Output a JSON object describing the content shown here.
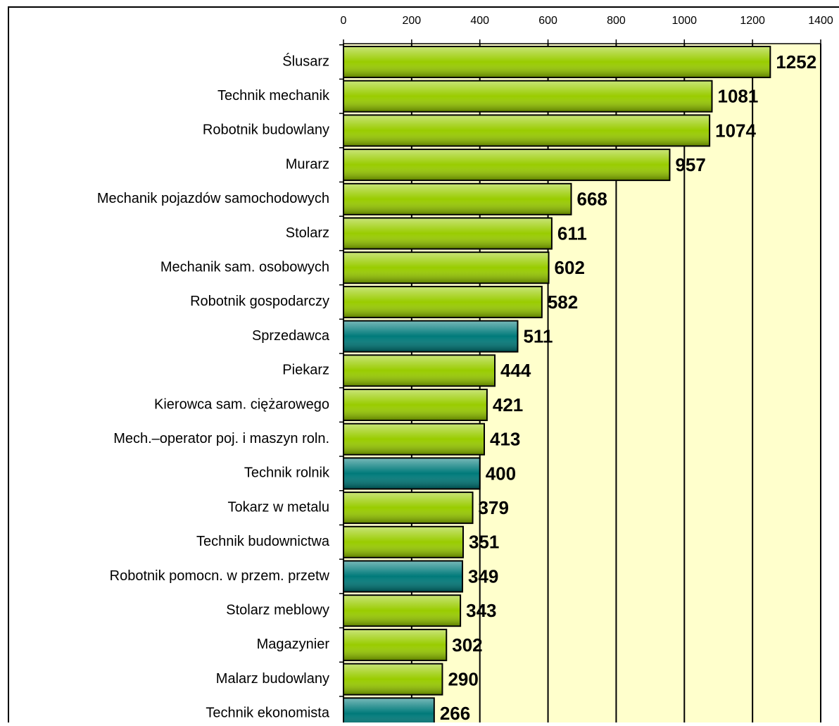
{
  "chart_data": {
    "type": "bar",
    "orientation": "horizontal",
    "categories": [
      "Ślusarz",
      "Technik mechanik",
      "Robotnik budowlany",
      "Murarz",
      "Mechanik pojazdów samochodowych",
      "Stolarz",
      "Mechanik sam. osobowych",
      "Robotnik gospodarczy",
      "Sprzedawca",
      "Piekarz",
      "Kierowca sam. ciężarowego",
      "Mech.–operator poj. i maszyn roln.",
      "Technik rolnik",
      "Tokarz w metalu",
      "Technik budownictwa",
      "Robotnik pomocn. w przem. przetw",
      "Stolarz meblowy",
      "Magazynier",
      "Malarz budowlany",
      "Technik ekonomista"
    ],
    "values": [
      1252,
      1081,
      1074,
      957,
      668,
      611,
      602,
      582,
      511,
      444,
      421,
      413,
      400,
      379,
      351,
      349,
      343,
      302,
      290,
      266
    ],
    "colors": [
      "#99cc00",
      "#99cc00",
      "#99cc00",
      "#99cc00",
      "#99cc00",
      "#99cc00",
      "#99cc00",
      "#99cc00",
      "#007a7a",
      "#99cc00",
      "#99cc00",
      "#99cc00",
      "#007a7a",
      "#99cc00",
      "#99cc00",
      "#007a7a",
      "#99cc00",
      "#99cc00",
      "#99cc00",
      "#007a7a"
    ],
    "xlim": [
      0,
      1400
    ],
    "xticks": [
      0,
      200,
      400,
      600,
      800,
      1000,
      1200,
      1400
    ],
    "grid": true
  }
}
